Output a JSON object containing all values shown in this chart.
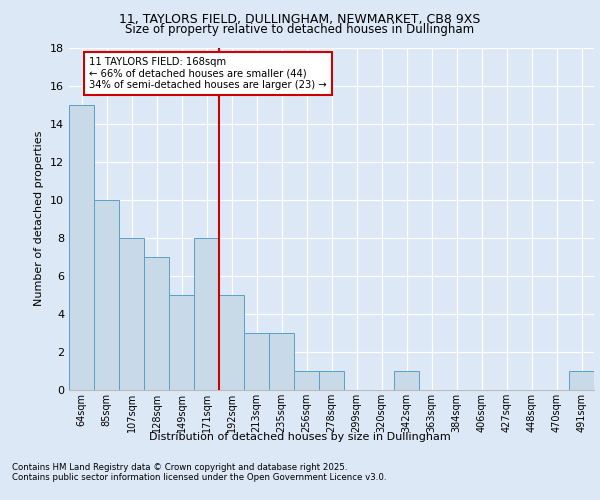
{
  "title1": "11, TAYLORS FIELD, DULLINGHAM, NEWMARKET, CB8 9XS",
  "title2": "Size of property relative to detached houses in Dullingham",
  "xlabel": "Distribution of detached houses by size in Dullingham",
  "ylabel": "Number of detached properties",
  "categories": [
    "64sqm",
    "85sqm",
    "107sqm",
    "128sqm",
    "149sqm",
    "171sqm",
    "192sqm",
    "213sqm",
    "235sqm",
    "256sqm",
    "278sqm",
    "299sqm",
    "320sqm",
    "342sqm",
    "363sqm",
    "384sqm",
    "406sqm",
    "427sqm",
    "448sqm",
    "470sqm",
    "491sqm"
  ],
  "values": [
    15,
    10,
    8,
    7,
    5,
    8,
    5,
    3,
    3,
    1,
    1,
    0,
    0,
    1,
    0,
    0,
    0,
    0,
    0,
    0,
    1
  ],
  "bar_color": "#c8d9e8",
  "bar_edge_color": "#5a9fc8",
  "vline_x": 5.5,
  "vline_color": "#cc0000",
  "annotation_text": "11 TAYLORS FIELD: 168sqm\n← 66% of detached houses are smaller (44)\n34% of semi-detached houses are larger (23) →",
  "annotation_box_color": "#ffffff",
  "annotation_border_color": "#cc0000",
  "bg_color": "#dce8f5",
  "plot_bg_color": "#dce8f5",
  "ylim": [
    0,
    18
  ],
  "yticks": [
    0,
    2,
    4,
    6,
    8,
    10,
    12,
    14,
    16,
    18
  ],
  "footer1": "Contains HM Land Registry data © Crown copyright and database right 2025.",
  "footer2": "Contains public sector information licensed under the Open Government Licence v3.0."
}
